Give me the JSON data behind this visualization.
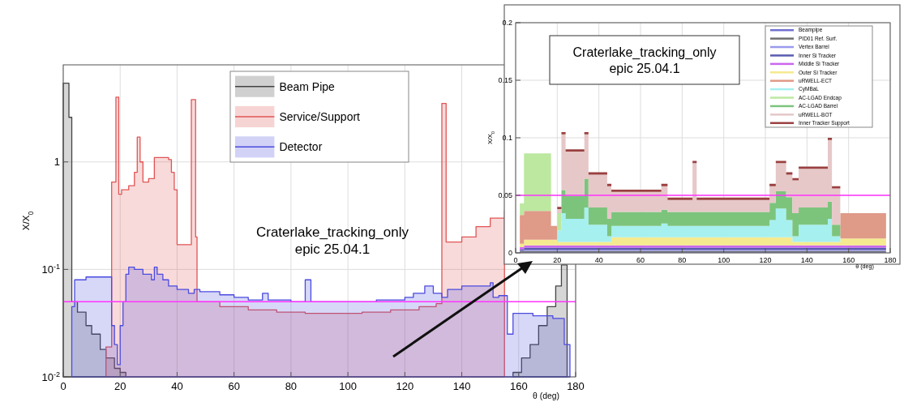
{
  "chart_data": [
    {
      "type": "area",
      "xlabel": "θ (deg)",
      "ylabel": "X/X$_{0}$",
      "log": "y",
      "grid": true,
      "legend": "top",
      "xlim": [
        0,
        180
      ],
      "xticks": [
        0,
        20,
        40,
        60,
        80,
        100,
        120,
        140,
        160,
        180
      ],
      "ylim": [
        0.01,
        8
      ],
      "yticks": [
        {
          "value": 0.01,
          "label": "10$^{-2}$"
        },
        {
          "value": 0.1,
          "label": "10$^{-1}$"
        },
        1
      ],
      "ref_lines": [
        {
          "axis": "y",
          "value": 0.05,
          "color": "#ff33ff"
        }
      ],
      "annotations": [
        "Craterlake_tracking_only",
        "epic 25.04.1"
      ],
      "series": [
        {
          "name": "Beam Pipe",
          "color": "#444444",
          "x": [
            0,
            2,
            2,
            3,
            3,
            5,
            5,
            8,
            8,
            10,
            10,
            13,
            13,
            15,
            15,
            18,
            18,
            20,
            20,
            22
          ],
          "values": [
            5.4,
            5.4,
            2.6,
            2.6,
            0.05,
            0.05,
            0.04,
            0.04,
            0.03,
            0.03,
            0.025,
            0.025,
            0.018,
            0.018,
            0.015,
            0.015,
            0.012,
            0.012,
            0.011,
            0.011
          ]
        },
        {
          "color": "#444444",
          "x": [
            158,
            161,
            161,
            164,
            164,
            167,
            167,
            170,
            170,
            173,
            173,
            175,
            175,
            177
          ],
          "values": [
            0.011,
            0.011,
            0.015,
            0.015,
            0.02,
            0.02,
            0.03,
            0.03,
            0.045,
            0.045,
            0.07,
            0.07,
            0.11,
            0.11
          ]
        },
        {
          "name": "Service/Support",
          "color": "#e05555",
          "x": [
            15,
            17,
            17,
            18.5,
            18.5,
            19.5,
            19.5,
            20.5,
            20.5,
            23,
            23,
            25,
            25,
            26,
            26,
            27,
            27,
            28,
            28,
            30,
            30,
            32,
            32,
            37,
            37,
            38,
            38,
            39,
            39,
            40,
            40,
            45,
            45,
            46.5,
            46.5,
            47,
            47,
            55,
            55,
            65,
            65,
            75,
            75,
            85,
            85,
            95,
            95,
            105,
            105,
            115,
            115,
            125,
            125,
            131,
            131,
            133,
            133,
            134.5,
            134.5,
            140,
            140,
            145,
            145,
            150,
            150,
            155,
            155
          ],
          "values": [
            0.019,
            0.019,
            0.65,
            0.65,
            4,
            4,
            0.5,
            0.5,
            0.55,
            0.55,
            0.6,
            0.6,
            0.8,
            0.8,
            1.7,
            1.7,
            1,
            1,
            0.65,
            0.65,
            0.7,
            0.7,
            1.1,
            1.1,
            1.05,
            1.05,
            0.8,
            0.8,
            0.55,
            0.55,
            0.17,
            0.17,
            3.8,
            3.8,
            0.2,
            0.2,
            0.05,
            0.05,
            0.045,
            0.045,
            0.042,
            0.042,
            0.04,
            0.04,
            0.039,
            0.039,
            0.039,
            0.039,
            0.04,
            0.04,
            0.042,
            0.042,
            0.045,
            0.045,
            0.048,
            0.048,
            3.5,
            3.5,
            0.18,
            0.18,
            0.2,
            0.2,
            0.25,
            0.25,
            0.3,
            0.3,
            0.35
          ]
        },
        {
          "name": "Detector",
          "color": "#4b4be0",
          "x": [
            3,
            4,
            4,
            8,
            8,
            16,
            16,
            17,
            17,
            18,
            18,
            19,
            19,
            20,
            20,
            21,
            21,
            22,
            22,
            23,
            23,
            25,
            25,
            28,
            28,
            31,
            31,
            32,
            32,
            33,
            33,
            35,
            35,
            37,
            37,
            40,
            40,
            44,
            44,
            46,
            46,
            48,
            48,
            55,
            55,
            60,
            60,
            65,
            65,
            70,
            70,
            72,
            72,
            80,
            80,
            85,
            85,
            87,
            87,
            100,
            100,
            110,
            110,
            120,
            120,
            123,
            123,
            127,
            127,
            130,
            130,
            133,
            133,
            135,
            135,
            140,
            140,
            150,
            150,
            151,
            151,
            153,
            153,
            156,
            156,
            158,
            158,
            165,
            165,
            172,
            172,
            176,
            176,
            178
          ],
          "values": [
            0.045,
            0.045,
            0.08,
            0.08,
            0.085,
            0.085,
            0.085,
            0.085,
            0.03,
            0.03,
            0.02,
            0.02,
            0.013,
            0.013,
            0.03,
            0.03,
            0.05,
            0.05,
            0.09,
            0.09,
            0.105,
            0.105,
            0.1,
            0.1,
            0.09,
            0.09,
            0.08,
            0.08,
            0.105,
            0.105,
            0.09,
            0.09,
            0.08,
            0.08,
            0.07,
            0.07,
            0.065,
            0.065,
            0.06,
            0.06,
            0.065,
            0.065,
            0.062,
            0.062,
            0.058,
            0.058,
            0.055,
            0.055,
            0.052,
            0.052,
            0.06,
            0.06,
            0.052,
            0.052,
            0.05,
            0.05,
            0.08,
            0.08,
            0.05,
            0.05,
            0.05,
            0.05,
            0.052,
            0.052,
            0.055,
            0.055,
            0.06,
            0.06,
            0.07,
            0.07,
            0.06,
            0.06,
            0.055,
            0.055,
            0.065,
            0.065,
            0.07,
            0.07,
            0.075,
            0.075,
            0.055,
            0.055,
            0.057,
            0.057,
            0.025,
            0.025,
            0.039,
            0.039,
            0.037,
            0.037,
            0.035,
            0.035,
            0.02,
            0.02
          ]
        }
      ]
    },
    {
      "type": "area",
      "stacked": true,
      "xlabel": "θ (deg)",
      "ylabel": "X/X$_{0}$",
      "grid": true,
      "legend": "top right",
      "xlim": [
        0,
        180
      ],
      "xticks": [
        0,
        20,
        40,
        60,
        80,
        100,
        120,
        140,
        160,
        180
      ],
      "ylim": [
        0,
        0.2
      ],
      "yticks": [
        0,
        0.05,
        0.1,
        0.15,
        0.2
      ],
      "ref_lines": [
        {
          "axis": "y",
          "value": 0.05,
          "color": "#ff33ff"
        }
      ],
      "annotations": [
        "Craterlake_tracking_only",
        "epic 25.04.1"
      ],
      "x": [
        2,
        4,
        4,
        17,
        17,
        20,
        20,
        22,
        22,
        24,
        24,
        33,
        33,
        35,
        35,
        44,
        44,
        46,
        46,
        70,
        70,
        73,
        73,
        85,
        85,
        87,
        87,
        122,
        122,
        125,
        125,
        130,
        130,
        133,
        133,
        136,
        136,
        150,
        150,
        152,
        152,
        156,
        156,
        160,
        160,
        178
      ],
      "series": [
        {
          "name": "Beampipe",
          "color": "#7070d0",
          "values": [
            0.0005,
            0.0005,
            0.0005,
            0.0005,
            0.0005,
            0.0005,
            0.0005,
            0.0005,
            0.0005,
            0.0005,
            0.0005,
            0.0005,
            0.0005,
            0.0005,
            0.0005,
            0.0005,
            0.0005,
            0.0005,
            0.0005,
            0.0005,
            0.0005,
            0.0005,
            0.0005,
            0.0005,
            0.0005,
            0.0005,
            0.0005,
            0.0005,
            0.0005,
            0.0005,
            0.0005,
            0.0005,
            0.0005,
            0.0005,
            0.0005,
            0.0005,
            0.0005,
            0.0005,
            0.0005,
            0.0005,
            0.0005,
            0.0005,
            0.0005,
            0.0005,
            0.0005,
            0.0005
          ]
        },
        {
          "name": "PID01 Ref. Surf.",
          "color": "#707070",
          "values": [
            0.001,
            0.001,
            0.001,
            0.001,
            0.001,
            0.001,
            0.001,
            0.001,
            0.001,
            0.001,
            0.001,
            0.001,
            0.001,
            0.001,
            0.001,
            0.001,
            0.001,
            0.001,
            0.001,
            0.001,
            0.001,
            0.001,
            0.001,
            0.001,
            0.001,
            0.001,
            0.001,
            0.001,
            0.001,
            0.001,
            0.001,
            0.001,
            0.001,
            0.001,
            0.001,
            0.001,
            0.001,
            0.001,
            0.001,
            0.001,
            0.001,
            0.001,
            0.001,
            0.001,
            0.001,
            0.001
          ]
        },
        {
          "name": "Vertex Barrel",
          "color": "#9a9aec",
          "values": [
            0.0005,
            0.0005,
            0.001,
            0.001,
            0.001,
            0.001,
            0.001,
            0.001,
            0.001,
            0.001,
            0.001,
            0.001,
            0.001,
            0.001,
            0.001,
            0.001,
            0.001,
            0.001,
            0.001,
            0.001,
            0.001,
            0.001,
            0.001,
            0.001,
            0.001,
            0.001,
            0.001,
            0.001,
            0.001,
            0.001,
            0.001,
            0.001,
            0.001,
            0.001,
            0.001,
            0.001,
            0.001,
            0.001,
            0.001,
            0.001,
            0.001,
            0.001,
            0.001,
            0.001,
            0.001,
            0.001
          ]
        },
        {
          "name": "Inner Si Tracker",
          "color": "#5a5ab0",
          "values": [
            0.001,
            0.001,
            0.002,
            0.002,
            0.002,
            0.002,
            0.002,
            0.002,
            0.002,
            0.002,
            0.002,
            0.002,
            0.002,
            0.002,
            0.002,
            0.002,
            0.002,
            0.002,
            0.002,
            0.002,
            0.002,
            0.002,
            0.002,
            0.002,
            0.002,
            0.002,
            0.002,
            0.002,
            0.002,
            0.002,
            0.002,
            0.002,
            0.002,
            0.002,
            0.002,
            0.002,
            0.002,
            0.002,
            0.002,
            0.002,
            0.002,
            0.002,
            0.002,
            0.002,
            0.002,
            0.002
          ]
        },
        {
          "name": "Middle Si Tracker",
          "color": "#cc66ee",
          "values": [
            0.002,
            0.002,
            0.002,
            0.002,
            0.002,
            0.002,
            0.002,
            0.002,
            0.002,
            0.002,
            0.002,
            0.002,
            0.002,
            0.002,
            0.002,
            0.002,
            0.002,
            0.002,
            0.002,
            0.002,
            0.002,
            0.002,
            0.002,
            0.002,
            0.002,
            0.002,
            0.002,
            0.002,
            0.002,
            0.002,
            0.002,
            0.002,
            0.002,
            0.002,
            0.002,
            0.002,
            0.002,
            0.002,
            0.002,
            0.002,
            0.002,
            0.002,
            0.002,
            0.002,
            0.002,
            0.002
          ]
        },
        {
          "name": "Outer Si Tracker",
          "color": "#f5ea90",
          "values": [
            0.003,
            0.003,
            0.005,
            0.005,
            0.005,
            0.005,
            0.003,
            0.003,
            0.003,
            0.003,
            0.003,
            0.003,
            0.003,
            0.003,
            0.003,
            0.003,
            0.003,
            0.003,
            0.007,
            0.007,
            0.007,
            0.007,
            0.007,
            0.007,
            0.007,
            0.007,
            0.007,
            0.007,
            0.007,
            0.007,
            0.007,
            0.007,
            0.007,
            0.007,
            0.003,
            0.003,
            0.003,
            0.003,
            0.003,
            0.003,
            0.003,
            0.003,
            0.006,
            0.006,
            0.006,
            0.006
          ]
        },
        {
          "name": "uRWELL-ECT",
          "color": "#e09a88",
          "values": [
            0.025,
            0.025,
            0.025,
            0.025,
            0.012,
            0.012,
            null,
            null,
            null,
            null,
            null,
            null,
            null,
            null,
            null,
            null,
            null,
            null,
            null,
            null,
            null,
            null,
            null,
            null,
            null,
            null,
            null,
            null,
            null,
            null,
            null,
            null,
            null,
            null,
            null,
            null,
            null,
            null,
            null,
            null,
            null,
            null,
            0.022,
            0.022,
            0.022,
            0.022
          ]
        },
        {
          "name": "CyMBaL",
          "color": "#a6f0f0",
          "values": [
            null,
            null,
            null,
            null,
            null,
            null,
            0.01,
            0.01,
            0.025,
            0.025,
            0.02,
            0.02,
            0.03,
            0.03,
            0.015,
            0.015,
            0.005,
            0.005,
            0.01,
            0.01,
            0.012,
            0.012,
            0.01,
            0.01,
            0.01,
            0.01,
            0.01,
            0.01,
            0.015,
            0.015,
            0.025,
            0.025,
            0.015,
            0.015,
            0.005,
            0.005,
            0.015,
            0.015,
            0.02,
            0.02,
            0.005,
            0.005,
            null,
            null,
            null,
            null
          ]
        },
        {
          "name": "AC-LGAD Endcap",
          "color": "#bce8a0",
          "values": [
            0.01,
            0.01,
            0.05,
            0.05,
            null,
            null,
            0.015,
            0.015,
            null,
            null,
            null,
            null,
            null,
            null,
            null,
            null,
            null,
            null,
            null,
            null,
            null,
            null,
            null,
            null,
            null,
            null,
            null,
            null,
            null,
            null,
            null,
            null,
            null,
            null,
            null,
            null,
            null,
            null,
            null,
            null,
            null,
            null,
            null,
            null,
            null,
            null
          ]
        },
        {
          "name": "AC-LGAD Barrel",
          "color": "#7cc47c",
          "values": [
            null,
            null,
            null,
            null,
            null,
            null,
            null,
            null,
            0.02,
            0.02,
            0.02,
            0.02,
            0.025,
            0.025,
            0.015,
            0.015,
            0.015,
            0.015,
            0.012,
            0.012,
            0.012,
            0.012,
            0.012,
            0.012,
            0.012,
            0.012,
            0.012,
            0.012,
            0.015,
            0.015,
            0.015,
            0.015,
            0.02,
            0.02,
            0.02,
            0.02,
            0.015,
            0.015,
            0.015,
            0.015,
            0.01,
            0.01,
            null,
            null,
            null,
            null
          ]
        },
        {
          "name": "uRWELL-BOT",
          "color": "#e6c8c8",
          "values": [
            null,
            null,
            null,
            null,
            null,
            null,
            0.0035,
            0.0035,
            0.0485,
            0.0485,
            0.0385,
            0.0385,
            0.0385,
            0.0385,
            0.0285,
            0.0285,
            0.0285,
            0.0285,
            0.0175,
            0.0175,
            0.0205,
            0.0205,
            0.0105,
            0.0105,
            0.0425,
            0.0425,
            0.0105,
            0.0105,
            0.0145,
            0.0145,
            0.0245,
            0.0245,
            0.0195,
            0.0195,
            0.0285,
            0.0285,
            0.0335,
            0.0335,
            0.0535,
            0.0535,
            0.0315,
            0.0315,
            null,
            null,
            null,
            null
          ]
        },
        {
          "name": "Inner Tracker Support",
          "color": "#9a4040",
          "values": [
            null,
            null,
            null,
            null,
            null,
            null,
            0.002,
            0.002,
            0.002,
            0.002,
            0.002,
            0.002,
            0.002,
            0.002,
            0.002,
            0.002,
            0.002,
            0.002,
            0.002,
            0.002,
            0.002,
            0.002,
            0.002,
            0.002,
            0.002,
            0.002,
            0.002,
            0.002,
            0.002,
            0.002,
            0.002,
            0.002,
            0.002,
            0.002,
            0.002,
            0.002,
            0.002,
            0.002,
            0.002,
            0.002,
            0.002,
            0.002,
            null,
            null,
            null,
            null
          ]
        }
      ]
    }
  ]
}
